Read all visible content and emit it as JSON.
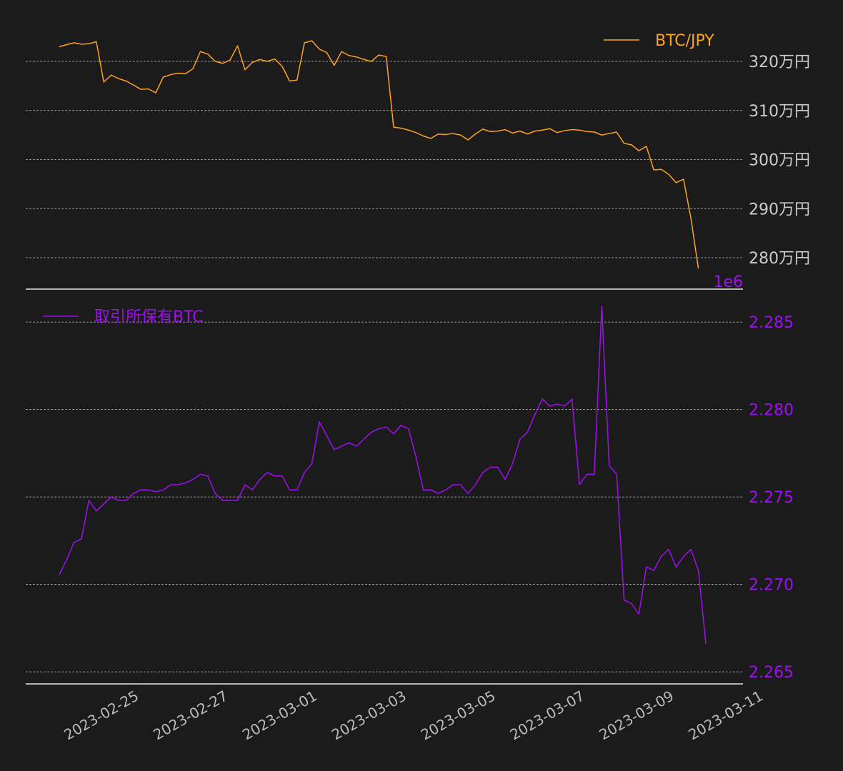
{
  "chart_data": [
    {
      "type": "line",
      "xlim": [
        "2023-02-23 06:00",
        "2023-03-11 08:00"
      ],
      "x": [
        "2023-02-24 00:00",
        "2023-02-24 04:00",
        "2023-02-24 08:00",
        "2023-02-24 12:00",
        "2023-02-24 16:00",
        "2023-02-24 20:00",
        "2023-02-25 00:00",
        "2023-02-25 04:00",
        "2023-02-25 08:00",
        "2023-02-25 12:00",
        "2023-02-25 16:00",
        "2023-02-25 20:00",
        "2023-02-26 00:00",
        "2023-02-26 04:00",
        "2023-02-26 08:00",
        "2023-02-26 12:00",
        "2023-02-26 16:00",
        "2023-02-26 20:00",
        "2023-02-27 00:00",
        "2023-02-27 04:00",
        "2023-02-27 08:00",
        "2023-02-27 12:00",
        "2023-02-27 16:00",
        "2023-02-27 20:00",
        "2023-02-28 00:00",
        "2023-02-28 04:00",
        "2023-02-28 08:00",
        "2023-02-28 12:00",
        "2023-02-28 16:00",
        "2023-02-28 20:00",
        "2023-03-01 00:00",
        "2023-03-01 04:00",
        "2023-03-01 08:00",
        "2023-03-01 12:00",
        "2023-03-01 16:00",
        "2023-03-01 20:00",
        "2023-03-02 00:00",
        "2023-03-02 04:00",
        "2023-03-02 08:00",
        "2023-03-02 12:00",
        "2023-03-02 16:00",
        "2023-03-02 20:00",
        "2023-03-03 00:00",
        "2023-03-03 04:00",
        "2023-03-03 08:00",
        "2023-03-03 12:00",
        "2023-03-03 16:00",
        "2023-03-03 20:00",
        "2023-03-04 00:00",
        "2023-03-04 04:00",
        "2023-03-04 08:00",
        "2023-03-04 12:00",
        "2023-03-04 16:00",
        "2023-03-04 20:00",
        "2023-03-05 00:00",
        "2023-03-05 04:00",
        "2023-03-05 08:00",
        "2023-03-05 12:00",
        "2023-03-05 16:00",
        "2023-03-05 20:00",
        "2023-03-06 00:00",
        "2023-03-06 04:00",
        "2023-03-06 08:00",
        "2023-03-06 12:00",
        "2023-03-06 16:00",
        "2023-03-06 20:00",
        "2023-03-07 00:00",
        "2023-03-07 04:00",
        "2023-03-07 08:00",
        "2023-03-07 12:00",
        "2023-03-07 16:00",
        "2023-03-07 20:00",
        "2023-03-08 00:00",
        "2023-03-08 04:00",
        "2023-03-08 08:00",
        "2023-03-08 12:00",
        "2023-03-08 16:00",
        "2023-03-08 20:00",
        "2023-03-09 00:00",
        "2023-03-09 04:00",
        "2023-03-09 08:00",
        "2023-03-09 12:00",
        "2023-03-09 16:00",
        "2023-03-09 20:00",
        "2023-03-10 00:00",
        "2023-03-10 04:00",
        "2023-03-10 08:00"
      ],
      "series": [
        {
          "name": "BTC/JPY",
          "color": "#ffa21f",
          "values": [
            3230000,
            3234000,
            3238000,
            3235000,
            3236000,
            3240000,
            3158000,
            3172000,
            3165000,
            3160000,
            3152000,
            3143000,
            3144000,
            3136000,
            3168000,
            3173000,
            3176000,
            3175000,
            3185000,
            3220000,
            3215000,
            3200000,
            3196000,
            3203000,
            3232000,
            3183000,
            3198000,
            3204000,
            3200000,
            3205000,
            3190000,
            3160000,
            3162000,
            3238000,
            3242000,
            3225000,
            3218000,
            3192000,
            3220000,
            3212000,
            3209000,
            3204000,
            3200000,
            3213000,
            3210000,
            3066000,
            3064000,
            3060000,
            3055000,
            3048000,
            3043000,
            3052000,
            3051000,
            3053000,
            3050000,
            3040000,
            3052000,
            3062000,
            3057000,
            3058000,
            3061000,
            3054000,
            3058000,
            3052000,
            3058000,
            3060000,
            3063000,
            3055000,
            3059000,
            3061000,
            3060000,
            3057000,
            3056000,
            3050000,
            3053000,
            3056000,
            3033000,
            3030000,
            3018000,
            3027000,
            2979000,
            2980000,
            2970000,
            2953000,
            2960000,
            2880000,
            2778000
          ]
        }
      ],
      "ylim": [
        2736000,
        3296000
      ],
      "yticks": [
        {
          "value": 2800000,
          "label": "280万円"
        },
        {
          "value": 2900000,
          "label": "290万円"
        },
        {
          "value": 3000000,
          "label": "300万円"
        },
        {
          "value": 3100000,
          "label": "310万円"
        },
        {
          "value": 3200000,
          "label": "320万円"
        }
      ],
      "grid": true,
      "legend": "upper right"
    },
    {
      "type": "line",
      "xlim": [
        "2023-02-23 06:00",
        "2023-03-11 08:00"
      ],
      "x": [
        "2023-02-24 00:00",
        "2023-02-24 04:00",
        "2023-02-24 08:00",
        "2023-02-24 12:00",
        "2023-02-24 16:00",
        "2023-02-24 20:00",
        "2023-02-25 00:00",
        "2023-02-25 04:00",
        "2023-02-25 08:00",
        "2023-02-25 12:00",
        "2023-02-25 16:00",
        "2023-02-25 20:00",
        "2023-02-26 00:00",
        "2023-02-26 04:00",
        "2023-02-26 08:00",
        "2023-02-26 12:00",
        "2023-02-26 16:00",
        "2023-02-26 20:00",
        "2023-02-27 00:00",
        "2023-02-27 04:00",
        "2023-02-27 08:00",
        "2023-02-27 12:00",
        "2023-02-27 16:00",
        "2023-02-27 20:00",
        "2023-02-28 00:00",
        "2023-02-28 04:00",
        "2023-02-28 08:00",
        "2023-02-28 12:00",
        "2023-02-28 16:00",
        "2023-02-28 20:00",
        "2023-03-01 00:00",
        "2023-03-01 04:00",
        "2023-03-01 08:00",
        "2023-03-01 12:00",
        "2023-03-01 16:00",
        "2023-03-01 20:00",
        "2023-03-02 00:00",
        "2023-03-02 04:00",
        "2023-03-02 08:00",
        "2023-03-02 12:00",
        "2023-03-02 16:00",
        "2023-03-02 20:00",
        "2023-03-03 00:00",
        "2023-03-03 04:00",
        "2023-03-03 08:00",
        "2023-03-03 12:00",
        "2023-03-03 16:00",
        "2023-03-03 20:00",
        "2023-03-04 00:00",
        "2023-03-04 04:00",
        "2023-03-04 08:00",
        "2023-03-04 12:00",
        "2023-03-04 16:00",
        "2023-03-04 20:00",
        "2023-03-05 00:00",
        "2023-03-05 04:00",
        "2023-03-05 08:00",
        "2023-03-05 12:00",
        "2023-03-05 16:00",
        "2023-03-05 20:00",
        "2023-03-06 00:00",
        "2023-03-06 04:00",
        "2023-03-06 08:00",
        "2023-03-06 12:00",
        "2023-03-06 16:00",
        "2023-03-06 20:00",
        "2023-03-07 00:00",
        "2023-03-07 04:00",
        "2023-03-07 08:00",
        "2023-03-07 12:00",
        "2023-03-07 16:00",
        "2023-03-07 20:00",
        "2023-03-08 00:00",
        "2023-03-08 04:00",
        "2023-03-08 08:00",
        "2023-03-08 12:00",
        "2023-03-08 16:00",
        "2023-03-08 20:00",
        "2023-03-09 00:00",
        "2023-03-09 04:00",
        "2023-03-09 08:00",
        "2023-03-09 12:00",
        "2023-03-09 16:00",
        "2023-03-09 20:00",
        "2023-03-10 00:00",
        "2023-03-10 04:00",
        "2023-03-10 08:00",
        "2023-03-10 12:00"
      ],
      "series": [
        {
          "name": "取引所保有BTC",
          "color": "#a00ff0",
          "values": [
            2270550,
            2271400,
            2272400,
            2272600,
            2274800,
            2274200,
            2274600,
            2275000,
            2274800,
            2274800,
            2275200,
            2275400,
            2275400,
            2275300,
            2275400,
            2275700,
            2275700,
            2275800,
            2276000,
            2276300,
            2276200,
            2275200,
            2274800,
            2274800,
            2274800,
            2275700,
            2275400,
            2276000,
            2276400,
            2276200,
            2276200,
            2275400,
            2275400,
            2276400,
            2276900,
            2279300,
            2278500,
            2277700,
            2277900,
            2278100,
            2277900,
            2278300,
            2278700,
            2278900,
            2279000,
            2278600,
            2279100,
            2278900,
            2277300,
            2275400,
            2275400,
            2275200,
            2275400,
            2275700,
            2275700,
            2275200,
            2275700,
            2276400,
            2276700,
            2276700,
            2276000,
            2276900,
            2278300,
            2278700,
            2279700,
            2280600,
            2280200,
            2280300,
            2280200,
            2280600,
            2275700,
            2276300,
            2276300,
            2285900,
            2276800,
            2276300,
            2269100,
            2268900,
            2268300,
            2271000,
            2270800,
            2271600,
            2272000,
            2271000,
            2271600,
            2272000,
            2270800,
            2266600
          ]
        }
      ],
      "ylim": [
        2264310,
        2286800
      ],
      "yticks": [
        {
          "value": 2265000,
          "label": "2.265"
        },
        {
          "value": 2270000,
          "label": "2.270"
        },
        {
          "value": 2275000,
          "label": "2.275"
        },
        {
          "value": 2280000,
          "label": "2.280"
        },
        {
          "value": 2285000,
          "label": "2.285"
        }
      ],
      "offset_text": "1e6",
      "xticks": [
        "2023-02-25",
        "2023-02-27",
        "2023-03-01",
        "2023-03-03",
        "2023-03-05",
        "2023-03-07",
        "2023-03-09",
        "2023-03-11"
      ],
      "grid": true,
      "legend": "upper left"
    }
  ]
}
